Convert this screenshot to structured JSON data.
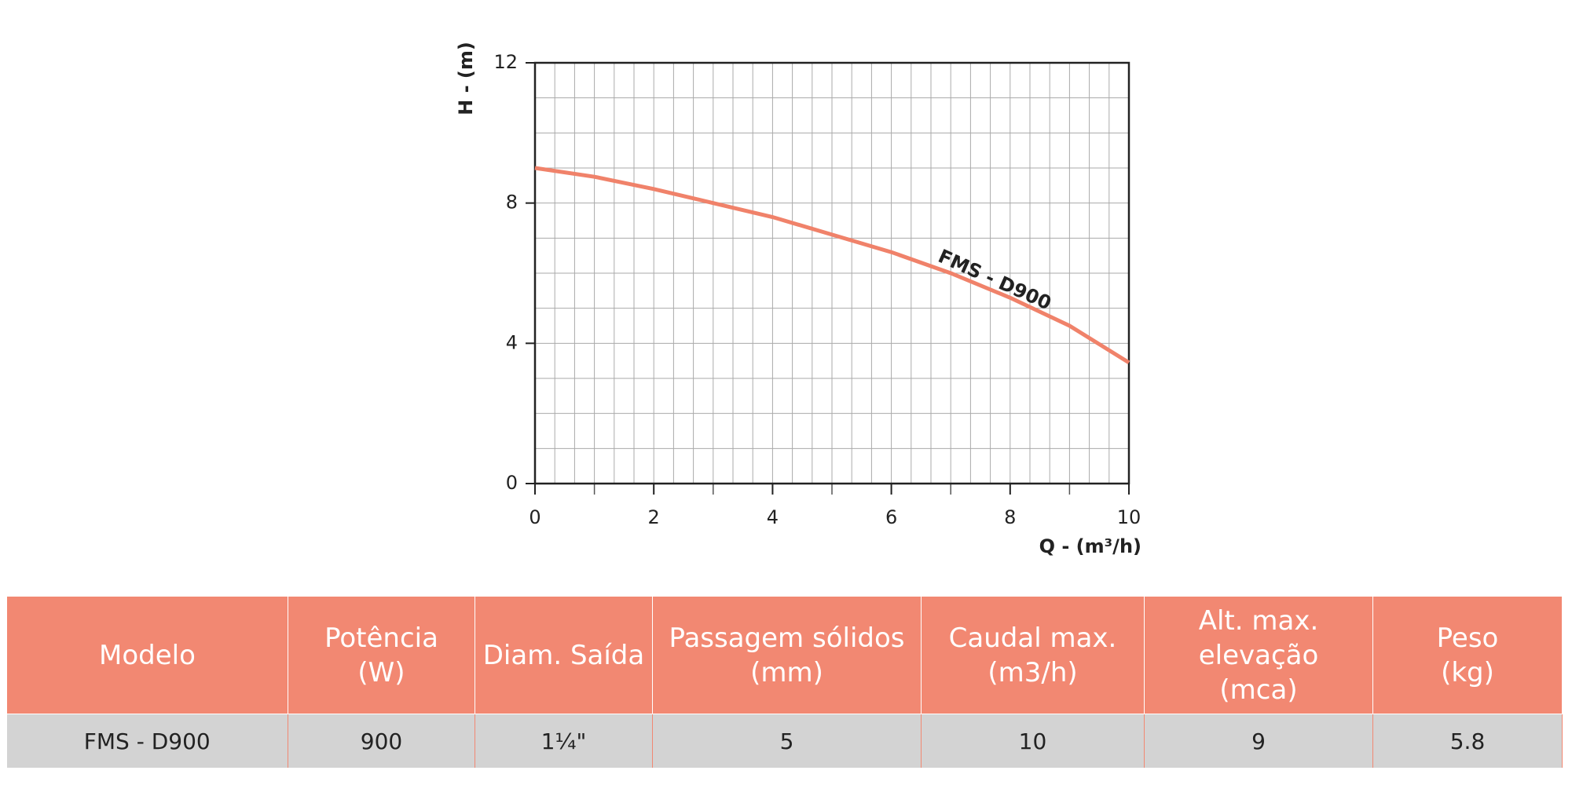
{
  "chart_data": {
    "type": "line",
    "ylabel": "H - (m)",
    "xlabel": "Q - (m³/h)",
    "x": [
      0,
      1,
      2,
      3,
      4,
      5,
      6,
      7,
      8,
      9,
      10
    ],
    "series": [
      {
        "name": "FMS - D900",
        "color": "#f0826a",
        "values": [
          9,
          8.75,
          8.4,
          8.0,
          7.6,
          7.1,
          6.6,
          6.0,
          5.3,
          4.5,
          3.45
        ]
      }
    ],
    "xlim": [
      0,
      10
    ],
    "xticks": [
      0,
      2,
      4,
      6,
      8,
      10
    ],
    "ylim": [
      0,
      12
    ],
    "yticks": [
      0,
      4,
      8,
      12
    ],
    "grid": true
  },
  "table": {
    "header": [
      [
        "Modelo"
      ],
      [
        "Potência",
        "(W)"
      ],
      [
        "Diam. Saída"
      ],
      [
        "Passagem sólidos",
        "(mm)"
      ],
      [
        "Caudal max.",
        "(m3/h)"
      ],
      [
        "Alt. max.",
        "elevação",
        "(mca)"
      ],
      [
        "Peso",
        "(kg)"
      ]
    ],
    "rows": [
      [
        "FMS - D900",
        "900",
        "1¼\"",
        "5",
        "10",
        "9",
        "5.8"
      ]
    ]
  }
}
